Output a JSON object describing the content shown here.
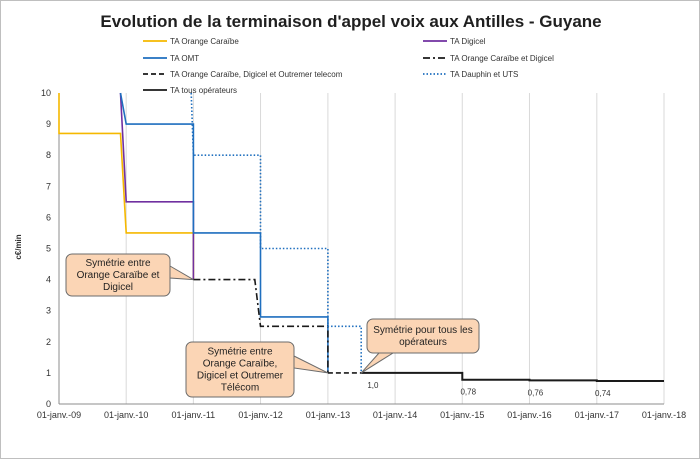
{
  "chart_data": {
    "type": "line",
    "title": "Evolution de la terminaison d'appel voix aux Antilles - Guyane",
    "ylabel": "c€/min",
    "ylim": [
      0,
      10
    ],
    "yticks": [
      0,
      1,
      2,
      3,
      4,
      5,
      6,
      7,
      8,
      9,
      10
    ],
    "xlim": [
      "2009-01-01",
      "2018-01-01"
    ],
    "xticks": [
      "01-janv.-09",
      "01-janv.-10",
      "01-janv.-11",
      "01-janv.-12",
      "01-janv.-13",
      "01-janv.-14",
      "01-janv.-15",
      "01-janv.-16",
      "01-janv.-17",
      "01-janv.-18"
    ],
    "grid": "vertical",
    "legend_position": "top",
    "series": [
      {
        "name": "TA Orange Caraïbe",
        "color": "#f5b800",
        "dash": "solid",
        "points": [
          [
            "2009-01-01",
            10
          ],
          [
            "2009-01-01",
            8.7
          ],
          [
            "2009-12-01",
            8.7
          ],
          [
            "2010-01-01",
            5.5
          ],
          [
            "2011-01-01",
            5.5
          ],
          [
            "2011-01-01",
            4
          ]
        ]
      },
      {
        "name": "TA Digicel",
        "color": "#7030a0",
        "dash": "solid",
        "points": [
          [
            "2009-12-01",
            10
          ],
          [
            "2010-01-01",
            6.5
          ],
          [
            "2011-01-01",
            6.5
          ],
          [
            "2011-01-01",
            4
          ]
        ]
      },
      {
        "name": "TA OMT",
        "color": "#1f6fbf",
        "dash": "solid",
        "points": [
          [
            "2009-12-01",
            10
          ],
          [
            "2010-01-01",
            9
          ],
          [
            "2011-01-01",
            9
          ],
          [
            "2011-01-01",
            5.5
          ],
          [
            "2012-01-01",
            5.5
          ],
          [
            "2012-01-01",
            2.8
          ],
          [
            "2013-01-01",
            2.8
          ],
          [
            "2013-01-01",
            1.0
          ]
        ]
      },
      {
        "name": "TA Orange Caraïbe et Digicel",
        "color": "#1a1a1a",
        "dash": "dashdot",
        "points": [
          [
            "2011-01-01",
            4
          ],
          [
            "2011-12-01",
            4
          ],
          [
            "2012-01-01",
            2.5
          ],
          [
            "2013-01-01",
            2.5
          ],
          [
            "2013-01-01",
            1.0
          ]
        ]
      },
      {
        "name": "TA Dauphin et UTS",
        "color": "#1f6fbf",
        "dash": "dotted",
        "points": [
          [
            "2010-12-20",
            10
          ],
          [
            "2011-01-01",
            8
          ],
          [
            "2012-01-01",
            8
          ],
          [
            "2012-01-01",
            5
          ],
          [
            "2013-01-01",
            5
          ],
          [
            "2013-01-01",
            2.5
          ],
          [
            "2013-07-01",
            2.5
          ],
          [
            "2013-07-01",
            1.0
          ]
        ]
      },
      {
        "name": "TA Orange Caraïbe, Digicel et Outremer telecom",
        "color": "#1a1a1a",
        "dash": "dashed",
        "points": [
          [
            "2013-01-01",
            1.0
          ],
          [
            "2013-07-01",
            1.0
          ]
        ]
      },
      {
        "name": "TA tous opérateurs",
        "color": "#1a1a1a",
        "dash": "solid",
        "points": [
          [
            "2013-07-01",
            1.0
          ],
          [
            "2015-01-01",
            1.0
          ],
          [
            "2015-01-01",
            0.78
          ],
          [
            "2016-01-01",
            0.78
          ],
          [
            "2016-01-01",
            0.76
          ],
          [
            "2017-01-01",
            0.76
          ],
          [
            "2017-01-01",
            0.74
          ],
          [
            "2018-01-01",
            0.74
          ]
        ]
      }
    ],
    "data_labels": [
      {
        "text": "1,0",
        "x": "2013-08-01",
        "y": 1.0
      },
      {
        "text": "0,78",
        "x": "2015-01-01",
        "y": 0.78
      },
      {
        "text": "0,76",
        "x": "2016-01-01",
        "y": 0.76
      },
      {
        "text": "0,74",
        "x": "2017-01-01",
        "y": 0.74
      }
    ],
    "annotations": [
      {
        "lines": [
          "Symétrie entre",
          "Orange Caraïbe et",
          "Digicel"
        ],
        "target": {
          "x": "2011-01-01",
          "y": 4
        }
      },
      {
        "lines": [
          "Symétrie entre",
          "Orange Caraïbe,",
          "Digicel et Outremer",
          "Télécom"
        ],
        "target": {
          "x": "2013-01-01",
          "y": 1.0
        }
      },
      {
        "lines": [
          "Symétrie pour tous les",
          "opérateurs"
        ],
        "target": {
          "x": "2013-07-01",
          "y": 1.0
        }
      }
    ],
    "callout_fill": "#fbd5b5",
    "callout_stroke": "#6b6b6b"
  }
}
